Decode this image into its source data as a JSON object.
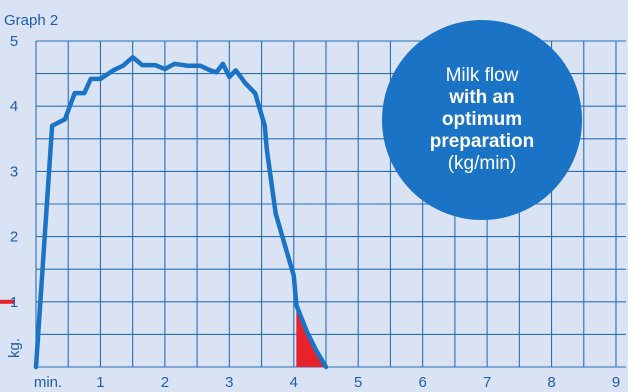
{
  "chart_data": {
    "type": "area",
    "title": "Graph 2",
    "xlabel": "min.",
    "ylabel": "kg.",
    "xlim": [
      0,
      9
    ],
    "ylim": [
      0,
      5
    ],
    "x_ticks": [
      "min.",
      "1",
      "2",
      "3",
      "4",
      "5",
      "6",
      "7",
      "8",
      "9"
    ],
    "y_ticks": [
      "1",
      "2",
      "3",
      "4",
      "5"
    ],
    "grid": true,
    "series": [
      {
        "color": "#1a73c5",
        "x": [
          0,
          0.25,
          0.45,
          0.6,
          0.75,
          0.85,
          1.0,
          1.2,
          1.35,
          1.5,
          1.65,
          1.85,
          2.0,
          2.15,
          2.35,
          2.55,
          2.7,
          2.8,
          2.9,
          3.0,
          3.1,
          3.25,
          3.4,
          3.55,
          3.58,
          3.72,
          4.0,
          4.04,
          4.2,
          4.35,
          4.5
        ],
        "y": [
          0,
          3.7,
          3.8,
          4.2,
          4.2,
          4.42,
          4.42,
          4.55,
          4.62,
          4.75,
          4.63,
          4.63,
          4.57,
          4.65,
          4.62,
          4.62,
          4.55,
          4.52,
          4.65,
          4.45,
          4.55,
          4.35,
          4.2,
          3.7,
          3.35,
          2.35,
          1.4,
          0.95,
          0.55,
          0.25,
          0
        ]
      }
    ],
    "highlight": {
      "color": "#e8222a",
      "x": [
        4.04,
        4.2,
        4.35,
        4.5
      ],
      "y": [
        0.95,
        0.55,
        0.25,
        0
      ]
    },
    "y_marker": {
      "value": 1,
      "color": "#e8222a"
    }
  },
  "badge": {
    "line1": "Milk flow",
    "line2": "with an",
    "line3": "optimum",
    "line4": "preparation",
    "line5": "(kg/min)"
  }
}
